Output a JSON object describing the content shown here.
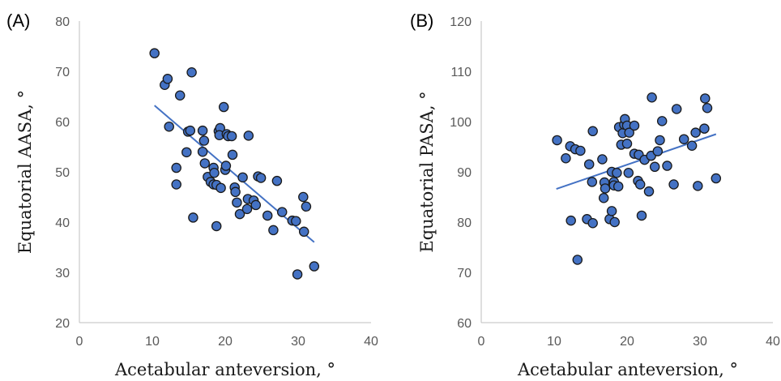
{
  "chart_data": [
    {
      "type": "scatter",
      "panel_label": "(A)",
      "xlabel": "Acetabular anteversion, °",
      "ylabel": "Equatorial AASA, °",
      "xlim": [
        0,
        40
      ],
      "ylim": [
        20,
        80
      ],
      "xticks": [
        0,
        10,
        20,
        30,
        40
      ],
      "yticks": [
        20,
        30,
        40,
        50,
        60,
        70,
        80
      ],
      "grid": false,
      "legend": "none",
      "trendline": {
        "x": [
          10.3,
          32.2
        ],
        "y": [
          63.2,
          36.0
        ]
      },
      "points": [
        [
          10.3,
          73.6
        ],
        [
          11.7,
          67.3
        ],
        [
          12.1,
          68.5
        ],
        [
          12.3,
          59.0
        ],
        [
          13.8,
          65.2
        ],
        [
          13.3,
          50.8
        ],
        [
          13.3,
          47.5
        ],
        [
          14.7,
          53.9
        ],
        [
          14.9,
          58.0
        ],
        [
          15.2,
          58.2
        ],
        [
          15.4,
          69.8
        ],
        [
          15.6,
          40.9
        ],
        [
          16.9,
          58.2
        ],
        [
          16.9,
          54.0
        ],
        [
          17.1,
          56.2
        ],
        [
          17.2,
          51.7
        ],
        [
          17.6,
          49.0
        ],
        [
          18.0,
          48.0
        ],
        [
          18.4,
          50.8
        ],
        [
          18.5,
          49.8
        ],
        [
          18.4,
          47.5
        ],
        [
          18.8,
          39.2
        ],
        [
          18.8,
          47.4
        ],
        [
          19.1,
          58.1
        ],
        [
          19.3,
          58.7
        ],
        [
          19.2,
          57.3
        ],
        [
          19.4,
          46.8
        ],
        [
          19.8,
          62.9
        ],
        [
          20.0,
          50.4
        ],
        [
          20.1,
          51.2
        ],
        [
          20.2,
          57.5
        ],
        [
          20.4,
          57.1
        ],
        [
          20.9,
          57.1
        ],
        [
          21.0,
          53.4
        ],
        [
          21.3,
          46.9
        ],
        [
          21.4,
          46.0
        ],
        [
          21.6,
          43.9
        ],
        [
          22.0,
          41.6
        ],
        [
          22.4,
          48.9
        ],
        [
          23.0,
          42.6
        ],
        [
          23.1,
          44.6
        ],
        [
          23.2,
          57.2
        ],
        [
          23.9,
          44.3
        ],
        [
          24.2,
          43.4
        ],
        [
          24.5,
          49.1
        ],
        [
          24.9,
          48.8
        ],
        [
          25.8,
          41.3
        ],
        [
          26.6,
          38.4
        ],
        [
          27.1,
          48.2
        ],
        [
          27.8,
          42.0
        ],
        [
          29.2,
          40.3
        ],
        [
          29.7,
          40.2
        ],
        [
          29.9,
          29.6
        ],
        [
          30.7,
          45.0
        ],
        [
          30.8,
          38.1
        ],
        [
          31.1,
          43.1
        ],
        [
          32.2,
          31.2
        ]
      ]
    },
    {
      "type": "scatter",
      "panel_label": "(B)",
      "xlabel": "Acetabular anteversion, °",
      "ylabel": "Equatorial PASA, °",
      "xlim": [
        0,
        40
      ],
      "ylim": [
        60,
        120
      ],
      "xticks": [
        0,
        10,
        20,
        30,
        40
      ],
      "yticks": [
        60,
        70,
        80,
        90,
        100,
        110,
        120
      ],
      "grid": false,
      "legend": "none",
      "trendline": {
        "x": [
          10.3,
          32.2
        ],
        "y": [
          86.6,
          97.5
        ]
      },
      "points": [
        [
          10.4,
          96.3
        ],
        [
          11.6,
          92.7
        ],
        [
          12.2,
          95.1
        ],
        [
          12.3,
          80.3
        ],
        [
          12.9,
          94.5
        ],
        [
          13.2,
          72.5
        ],
        [
          13.6,
          94.2
        ],
        [
          14.5,
          80.6
        ],
        [
          14.8,
          91.5
        ],
        [
          15.3,
          98.1
        ],
        [
          15.3,
          79.8
        ],
        [
          15.2,
          88.0
        ],
        [
          16.6,
          92.5
        ],
        [
          16.8,
          84.8
        ],
        [
          16.9,
          87.9
        ],
        [
          17.0,
          86.7
        ],
        [
          17.6,
          80.6
        ],
        [
          17.9,
          82.2
        ],
        [
          17.9,
          90.0
        ],
        [
          18.2,
          88.0
        ],
        [
          18.2,
          87.3
        ],
        [
          18.3,
          80.0
        ],
        [
          18.6,
          89.8
        ],
        [
          18.8,
          87.1
        ],
        [
          18.9,
          98.9
        ],
        [
          19.2,
          95.4
        ],
        [
          19.4,
          97.7
        ],
        [
          19.6,
          99.4
        ],
        [
          19.7,
          100.5
        ],
        [
          20.0,
          99.2
        ],
        [
          20.0,
          95.6
        ],
        [
          20.2,
          89.8
        ],
        [
          20.3,
          97.8
        ],
        [
          21.0,
          93.6
        ],
        [
          21.0,
          99.2
        ],
        [
          21.6,
          93.4
        ],
        [
          21.5,
          88.2
        ],
        [
          21.8,
          87.5
        ],
        [
          22.0,
          81.3
        ],
        [
          22.4,
          92.4
        ],
        [
          23.0,
          86.1
        ],
        [
          23.3,
          93.2
        ],
        [
          23.4,
          104.8
        ],
        [
          23.8,
          91.0
        ],
        [
          24.2,
          94.1
        ],
        [
          24.5,
          96.3
        ],
        [
          24.8,
          100.1
        ],
        [
          25.5,
          91.2
        ],
        [
          26.4,
          87.5
        ],
        [
          26.8,
          102.5
        ],
        [
          27.8,
          96.5
        ],
        [
          28.9,
          95.2
        ],
        [
          29.4,
          97.8
        ],
        [
          29.7,
          87.2
        ],
        [
          30.6,
          98.6
        ],
        [
          30.7,
          104.6
        ],
        [
          31.0,
          102.7
        ],
        [
          32.2,
          88.7
        ]
      ]
    }
  ]
}
